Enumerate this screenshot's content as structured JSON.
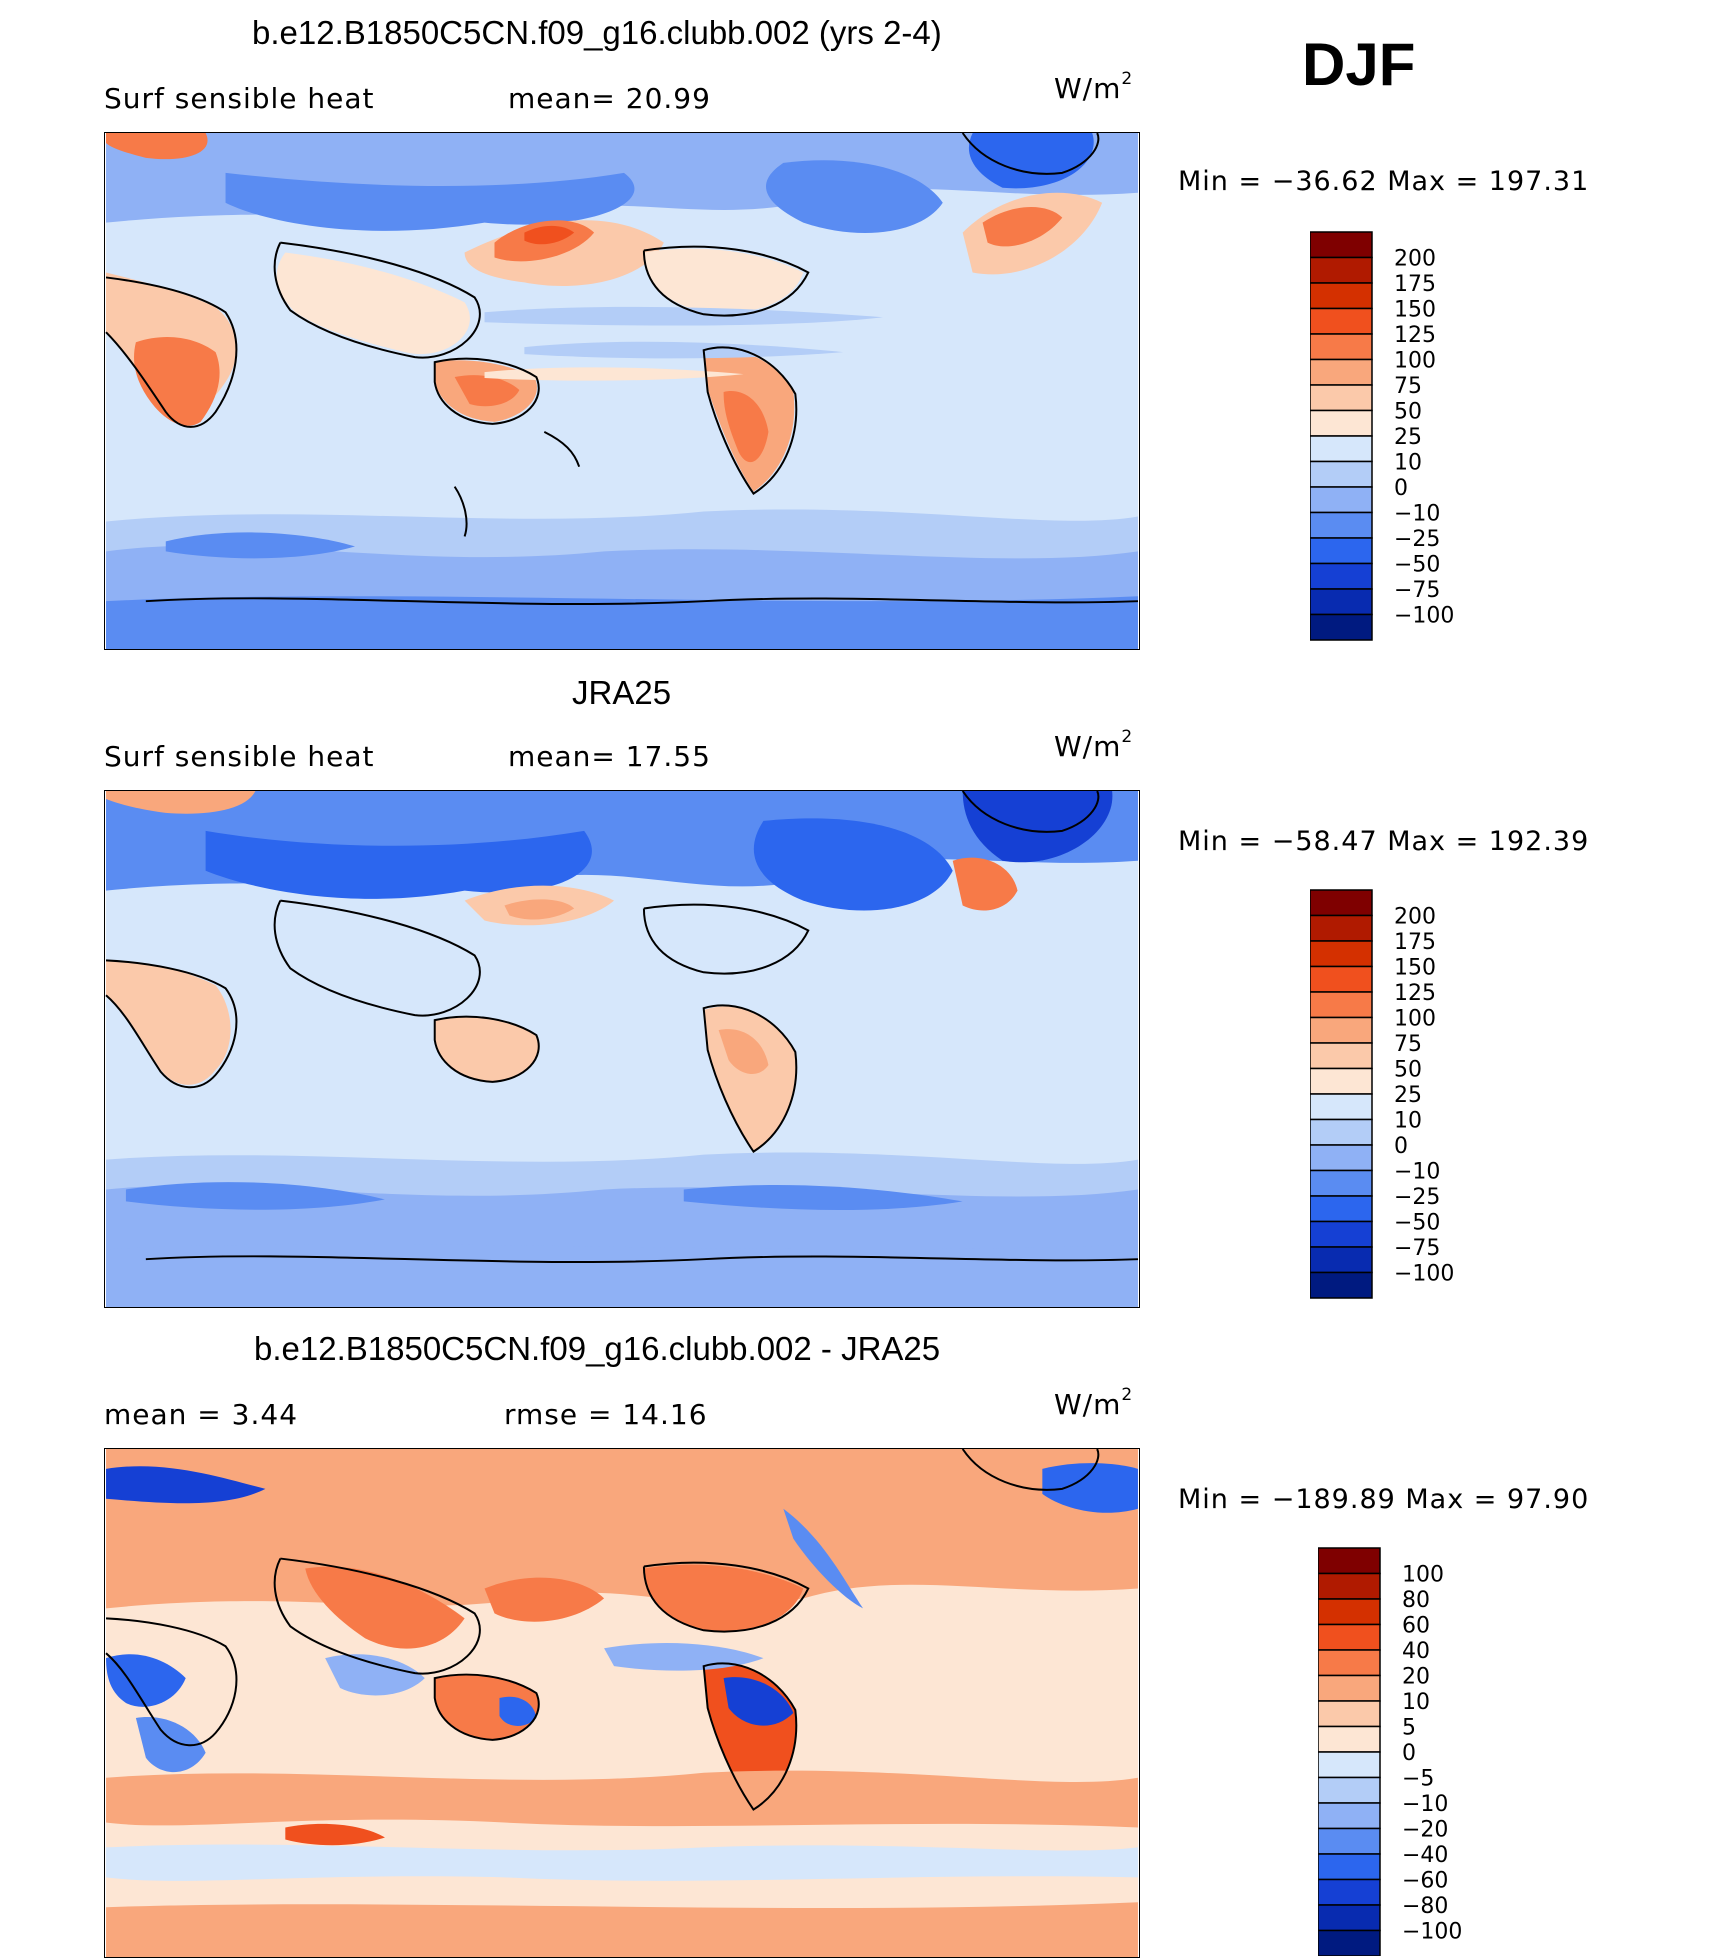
{
  "season": "DJF",
  "panels": [
    {
      "title": "b.e12.B1850C5CN.f09_g16.clubb.002 (yrs 2-4)",
      "left_label": "Surf  sensible  heat",
      "center_label": "mean=   20.99",
      "units_base": "W/m",
      "units_exp": "2",
      "minmax": "Min  =  −36.62  Max  =  197.31",
      "colorbar": {
        "labels": [
          "200",
          "175",
          "150",
          "125",
          "100",
          "75",
          "50",
          "25",
          "10",
          "0",
          "−10",
          "−25",
          "−50",
          "−75",
          "−100"
        ],
        "colors": [
          "#7f0000",
          "#b01a00",
          "#d43000",
          "#f0501e",
          "#f77a48",
          "#f9a77c",
          "#fbc9aa",
          "#fde6d4",
          "#d6e7fb",
          "#b3cdf7",
          "#8fb1f5",
          "#5a8cf2",
          "#2c66ee",
          "#1540d4",
          "#082bb0",
          "#001a80"
        ]
      }
    },
    {
      "title": "JRA25",
      "left_label": "Surf  sensible  heat",
      "center_label": "mean=   17.55",
      "units_base": "W/m",
      "units_exp": "2",
      "minmax": "Min  =  −58.47  Max  =  192.39",
      "colorbar": {
        "labels": [
          "200",
          "175",
          "150",
          "125",
          "100",
          "75",
          "50",
          "25",
          "10",
          "0",
          "−10",
          "−25",
          "−50",
          "−75",
          "−100"
        ],
        "colors": [
          "#7f0000",
          "#b01a00",
          "#d43000",
          "#f0501e",
          "#f77a48",
          "#f9a77c",
          "#fbc9aa",
          "#fde6d4",
          "#d6e7fb",
          "#b3cdf7",
          "#8fb1f5",
          "#5a8cf2",
          "#2c66ee",
          "#1540d4",
          "#082bb0",
          "#001a80"
        ]
      }
    },
    {
      "title": "b.e12.B1850C5CN.f09_g16.clubb.002 - JRA25",
      "left_label": "mean  =      3.44",
      "center_label": "rmse  =     14.16",
      "units_base": "W/m",
      "units_exp": "2",
      "minmax": "Min  =  −189.89  Max  =     97.90",
      "colorbar": {
        "labels": [
          "100",
          "80",
          "60",
          "40",
          "20",
          "10",
          "5",
          "0",
          "−5",
          "−10",
          "−20",
          "−40",
          "−60",
          "−80",
          "−100"
        ],
        "colors": [
          "#7f0000",
          "#b01a00",
          "#d43000",
          "#f0501e",
          "#f77a48",
          "#f9a77c",
          "#fbc9aa",
          "#fde6d4",
          "#d6e7fb",
          "#b3cdf7",
          "#8fb1f5",
          "#5a8cf2",
          "#2c66ee",
          "#1540d4",
          "#082bb0",
          "#001a80"
        ]
      }
    }
  ]
}
